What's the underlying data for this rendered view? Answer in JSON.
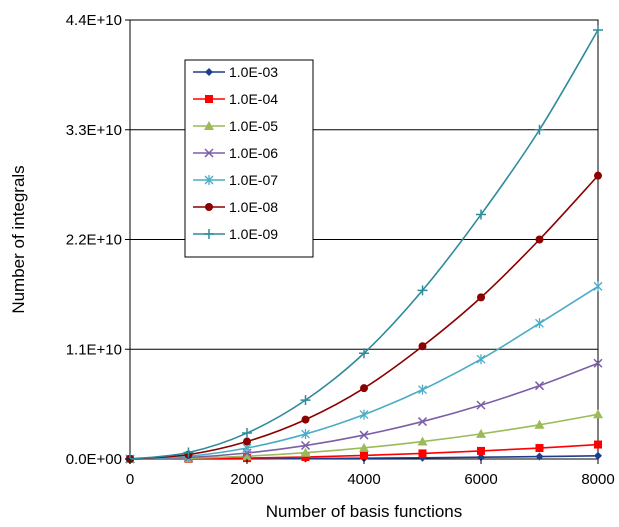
{
  "chart_data": {
    "type": "line",
    "title": "",
    "xlabel": "Number of basis functions",
    "ylabel": "Number of integrals",
    "xlim": [
      0,
      8000
    ],
    "ylim": [
      0,
      44000000000
    ],
    "x_ticks": [
      0,
      2000,
      4000,
      6000,
      8000
    ],
    "x_tick_labels": [
      "0",
      "2000",
      "4000",
      "6000",
      "8000"
    ],
    "y_ticks": [
      0,
      11000000000,
      22000000000,
      33000000000,
      44000000000
    ],
    "y_tick_labels": [
      "0.0E+00",
      "1.1E+10",
      "2.2E+10",
      "3.3E+10",
      "4.4E+10"
    ],
    "grid": "horizontal major gridlines",
    "legend_position": "upper-left inside plot",
    "x": [
      0,
      1000,
      2000,
      3000,
      4000,
      5000,
      6000,
      7000,
      8000
    ],
    "series": [
      {
        "name": "1.0E-03",
        "color": "#1f3d8c",
        "marker": "diamond",
        "values": [
          0,
          5000000,
          20000000,
          45000000,
          80000000,
          125000000,
          180000000,
          245000000,
          320000000
        ]
      },
      {
        "name": "1.0E-04",
        "color": "#ff0000",
        "marker": "square",
        "values": [
          0,
          22000000,
          90000000,
          200000000,
          360000000,
          560000000,
          810000000,
          1100000000,
          1450000000
        ]
      },
      {
        "name": "1.0E-05",
        "color": "#9bbb59",
        "marker": "triangle",
        "values": [
          0,
          70000000,
          280000000,
          630000000,
          1120000000,
          1750000000,
          2520000000,
          3430000000,
          4480000000
        ]
      },
      {
        "name": "1.0E-06",
        "color": "#7b5ea7",
        "marker": "x",
        "values": [
          0,
          150000000,
          600000000,
          1350000000,
          2400000000,
          3750000000,
          5400000000,
          7350000000,
          9600000000
        ]
      },
      {
        "name": "1.0E-07",
        "color": "#4bacc6",
        "marker": "star",
        "values": [
          0,
          270000000,
          1100000000,
          2500000000,
          4450000000,
          6950000000,
          10000000000,
          13600000000,
          17300000000
        ]
      },
      {
        "name": "1.0E-08",
        "color": "#8b0000",
        "marker": "circle",
        "values": [
          0,
          440000000,
          1750000000,
          3950000000,
          7100000000,
          11300000000,
          16200000000,
          22000000000,
          28400000000
        ]
      },
      {
        "name": "1.0E-09",
        "color": "#2e8b9a",
        "marker": "plus",
        "values": [
          0,
          650000000,
          2600000000,
          5900000000,
          10600000000,
          16900000000,
          24500000000,
          33000000000,
          43000000000
        ]
      }
    ]
  }
}
